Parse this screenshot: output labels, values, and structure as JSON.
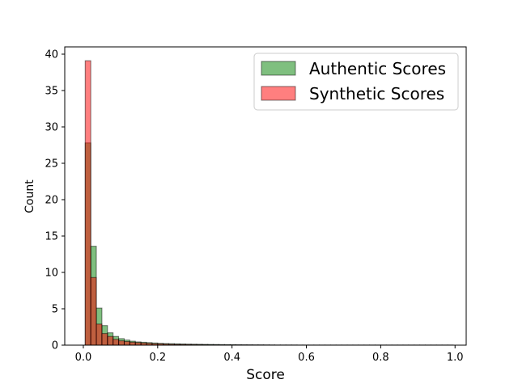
{
  "chart_data": {
    "type": "bar",
    "subtype": "overlaid-histogram",
    "title": "",
    "xlabel": "Score",
    "ylabel": "Count",
    "xlim": [
      -0.05,
      1.03
    ],
    "ylim": [
      0,
      41
    ],
    "xticks": [
      "0.0",
      "0.2",
      "0.4",
      "0.6",
      "0.8",
      "1.0"
    ],
    "yticks": [
      "0",
      "5",
      "10",
      "15",
      "20",
      "25",
      "30",
      "35",
      "40"
    ],
    "grid": false,
    "legend_position": "top-right",
    "bin_edges": [
      0.005,
      0.02,
      0.035,
      0.05,
      0.065,
      0.08,
      0.095,
      0.11,
      0.125,
      0.14,
      0.155,
      0.17,
      0.185,
      0.2,
      0.215,
      0.23,
      0.245,
      0.26,
      0.275,
      0.29,
      0.305,
      0.32,
      0.335,
      0.35,
      0.365,
      0.38,
      0.395,
      0.41,
      0.425,
      0.44,
      0.455,
      0.47,
      0.485,
      0.5,
      0.515,
      0.53,
      0.545,
      0.56,
      0.575,
      0.59,
      0.605,
      0.62,
      0.635,
      0.65,
      0.665,
      0.68,
      0.695,
      0.71,
      0.725,
      0.74,
      0.755,
      0.77,
      0.785,
      0.8,
      0.815,
      0.83,
      0.845,
      0.86,
      0.875,
      0.89,
      0.905,
      0.92,
      0.935,
      0.95,
      0.965,
      0.98,
      0.995
    ],
    "series": [
      {
        "name": "Authentic Scores",
        "color": "#008000",
        "alpha": 0.5,
        "values": [
          27.8,
          13.6,
          5.1,
          2.7,
          1.7,
          1.2,
          0.9,
          0.7,
          0.55,
          0.45,
          0.4,
          0.35,
          0.3,
          0.25,
          0.22,
          0.2,
          0.18,
          0.16,
          0.14,
          0.13,
          0.12,
          0.11,
          0.1,
          0.09,
          0.08,
          0.07,
          0.07,
          0.06,
          0.05,
          0.05,
          0.04,
          0.04,
          0.03,
          0.03,
          0.02,
          0.02,
          0.02,
          0.02,
          0.01,
          0.01,
          0.01,
          0.01,
          0.01,
          0.01,
          0.01,
          0.01,
          0.01,
          0.01,
          0.01,
          0.01,
          0.01,
          0.01,
          0.01,
          0.01,
          0.01,
          0.01,
          0.01,
          0.01,
          0.01,
          0.01,
          0.01,
          0.01,
          0.01,
          0.01,
          0.01,
          0.01
        ]
      },
      {
        "name": "Synthetic Scores",
        "color": "#ff0000",
        "alpha": 0.5,
        "values": [
          39.1,
          9.3,
          2.9,
          1.6,
          1.2,
          0.8,
          0.6,
          0.5,
          0.4,
          0.35,
          0.3,
          0.25,
          0.2,
          0.18,
          0.15,
          0.13,
          0.11,
          0.1,
          0.09,
          0.08,
          0.07,
          0.06,
          0.05,
          0.05,
          0.04,
          0.04,
          0.03,
          0.03,
          0.03,
          0.02,
          0.02,
          0.02,
          0.02,
          0.01,
          0.01,
          0.01,
          0.01,
          0.01,
          0.01,
          0.01,
          0.01,
          0.01,
          0.01,
          0.01,
          0.01,
          0.01,
          0.01,
          0.01,
          0.01,
          0.01,
          0.01,
          0.01,
          0.01,
          0.01,
          0.01,
          0.01,
          0.01,
          0.01,
          0.01,
          0.01,
          0.01,
          0.01,
          0.01,
          0.01,
          0.01,
          0.01
        ]
      }
    ]
  }
}
